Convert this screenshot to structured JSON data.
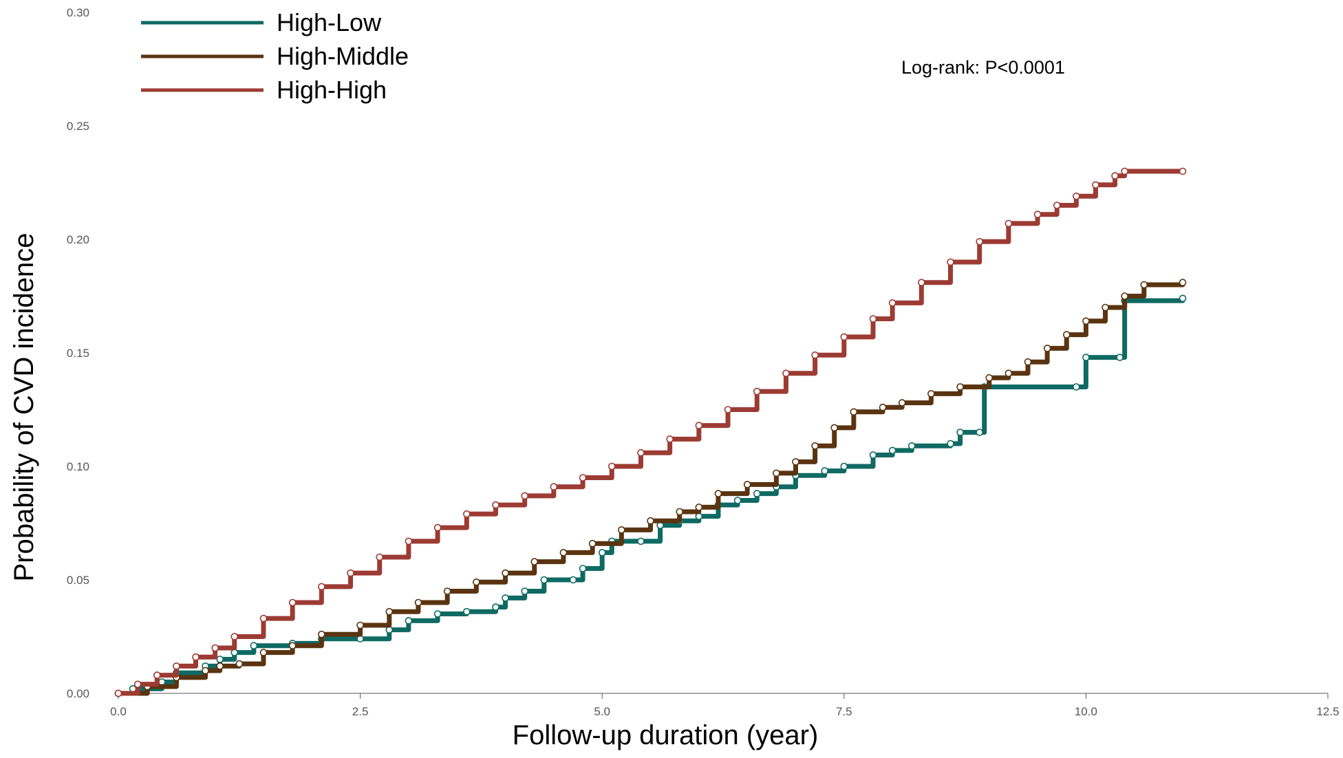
{
  "chart_data": {
    "type": "line",
    "title": "",
    "xlabel": "Follow-up duration (year)",
    "ylabel": "Probability of CVD incidence",
    "xlim": [
      0,
      12.5
    ],
    "ylim": [
      0,
      0.3
    ],
    "x_ticks": [
      "0.0",
      "2.5",
      "5.0",
      "7.5",
      "10.0",
      "12.5"
    ],
    "y_ticks": [
      "0.00",
      "0.05",
      "0.10",
      "0.15",
      "0.20",
      "0.25",
      "0.30"
    ],
    "grid": false,
    "legend_position": "top-left",
    "annotation": "Log-rank: P<0.0001",
    "series": [
      {
        "name": "High-Low",
        "color": "#0e6a63",
        "points": [
          [
            0,
            0
          ],
          [
            0.15,
            0.002
          ],
          [
            0.45,
            0.005
          ],
          [
            0.6,
            0.009
          ],
          [
            0.9,
            0.012
          ],
          [
            1.05,
            0.015
          ],
          [
            1.2,
            0.018
          ],
          [
            1.4,
            0.021
          ],
          [
            1.8,
            0.022
          ],
          [
            2.1,
            0.024
          ],
          [
            2.5,
            0.024
          ],
          [
            2.8,
            0.028
          ],
          [
            3.0,
            0.032
          ],
          [
            3.3,
            0.035
          ],
          [
            3.6,
            0.036
          ],
          [
            3.9,
            0.038
          ],
          [
            4.0,
            0.042
          ],
          [
            4.2,
            0.045
          ],
          [
            4.4,
            0.05
          ],
          [
            4.7,
            0.05
          ],
          [
            4.8,
            0.055
          ],
          [
            5.0,
            0.062
          ],
          [
            5.1,
            0.067
          ],
          [
            5.4,
            0.067
          ],
          [
            5.6,
            0.074
          ],
          [
            5.8,
            0.076
          ],
          [
            6.0,
            0.078
          ],
          [
            6.2,
            0.083
          ],
          [
            6.4,
            0.085
          ],
          [
            6.6,
            0.088
          ],
          [
            6.8,
            0.091
          ],
          [
            7.0,
            0.096
          ],
          [
            7.3,
            0.098
          ],
          [
            7.5,
            0.1
          ],
          [
            7.8,
            0.105
          ],
          [
            8.0,
            0.107
          ],
          [
            8.2,
            0.109
          ],
          [
            8.6,
            0.11
          ],
          [
            8.7,
            0.115
          ],
          [
            8.9,
            0.115
          ],
          [
            8.95,
            0.135
          ],
          [
            9.9,
            0.135
          ],
          [
            10.0,
            0.148
          ],
          [
            10.35,
            0.148
          ],
          [
            10.4,
            0.173
          ],
          [
            11.0,
            0.174
          ]
        ]
      },
      {
        "name": "High-Middle",
        "color": "#5a3410",
        "points": [
          [
            0,
            0
          ],
          [
            0.3,
            0.003
          ],
          [
            0.6,
            0.007
          ],
          [
            0.9,
            0.01
          ],
          [
            1.05,
            0.012
          ],
          [
            1.25,
            0.013
          ],
          [
            1.5,
            0.018
          ],
          [
            1.8,
            0.021
          ],
          [
            2.1,
            0.026
          ],
          [
            2.5,
            0.03
          ],
          [
            2.8,
            0.036
          ],
          [
            3.1,
            0.04
          ],
          [
            3.4,
            0.045
          ],
          [
            3.7,
            0.049
          ],
          [
            4.0,
            0.053
          ],
          [
            4.3,
            0.058
          ],
          [
            4.6,
            0.062
          ],
          [
            4.9,
            0.066
          ],
          [
            5.2,
            0.072
          ],
          [
            5.5,
            0.076
          ],
          [
            5.8,
            0.08
          ],
          [
            6.0,
            0.082
          ],
          [
            6.2,
            0.088
          ],
          [
            6.5,
            0.092
          ],
          [
            6.8,
            0.097
          ],
          [
            7.0,
            0.102
          ],
          [
            7.2,
            0.109
          ],
          [
            7.4,
            0.117
          ],
          [
            7.6,
            0.124
          ],
          [
            7.9,
            0.126
          ],
          [
            8.1,
            0.128
          ],
          [
            8.4,
            0.132
          ],
          [
            8.7,
            0.135
          ],
          [
            9.0,
            0.139
          ],
          [
            9.2,
            0.141
          ],
          [
            9.4,
            0.146
          ],
          [
            9.6,
            0.152
          ],
          [
            9.8,
            0.158
          ],
          [
            10.0,
            0.164
          ],
          [
            10.2,
            0.17
          ],
          [
            10.4,
            0.175
          ],
          [
            10.6,
            0.18
          ],
          [
            11.0,
            0.181
          ]
        ]
      },
      {
        "name": "High-High",
        "color": "#9c3b33",
        "points": [
          [
            0,
            0
          ],
          [
            0.2,
            0.004
          ],
          [
            0.4,
            0.008
          ],
          [
            0.6,
            0.012
          ],
          [
            0.8,
            0.016
          ],
          [
            1.0,
            0.02
          ],
          [
            1.2,
            0.025
          ],
          [
            1.5,
            0.033
          ],
          [
            1.8,
            0.04
          ],
          [
            2.1,
            0.047
          ],
          [
            2.4,
            0.053
          ],
          [
            2.7,
            0.06
          ],
          [
            3.0,
            0.067
          ],
          [
            3.3,
            0.073
          ],
          [
            3.6,
            0.079
          ],
          [
            3.9,
            0.083
          ],
          [
            4.2,
            0.087
          ],
          [
            4.5,
            0.091
          ],
          [
            4.8,
            0.095
          ],
          [
            5.1,
            0.1
          ],
          [
            5.4,
            0.106
          ],
          [
            5.7,
            0.112
          ],
          [
            6.0,
            0.118
          ],
          [
            6.3,
            0.125
          ],
          [
            6.6,
            0.133
          ],
          [
            6.9,
            0.141
          ],
          [
            7.2,
            0.149
          ],
          [
            7.5,
            0.157
          ],
          [
            7.8,
            0.165
          ],
          [
            8.0,
            0.172
          ],
          [
            8.3,
            0.181
          ],
          [
            8.6,
            0.19
          ],
          [
            8.9,
            0.199
          ],
          [
            9.2,
            0.207
          ],
          [
            9.5,
            0.211
          ],
          [
            9.7,
            0.215
          ],
          [
            9.9,
            0.219
          ],
          [
            10.1,
            0.224
          ],
          [
            10.3,
            0.228
          ],
          [
            10.4,
            0.23
          ],
          [
            11.0,
            0.23
          ]
        ]
      }
    ]
  }
}
